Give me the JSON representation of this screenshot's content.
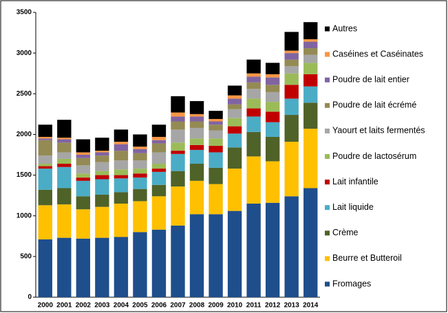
{
  "chart_data": {
    "type": "stacked_bar",
    "categories": [
      "2000",
      "2001",
      "2002",
      "2003",
      "2004",
      "2005",
      "2006",
      "2007",
      "2008",
      "2009",
      "2010",
      "2011",
      "2012",
      "2013",
      "2014"
    ],
    "ylim": [
      0,
      3500
    ],
    "yticks": [
      0,
      500,
      1000,
      1500,
      2000,
      2500,
      3000,
      3500
    ],
    "grid": false,
    "legend": "right",
    "series": [
      {
        "name": "Fromages",
        "color": "#1f4e8c",
        "values": [
          710,
          730,
          720,
          730,
          740,
          800,
          830,
          880,
          1020,
          1020,
          1060,
          1150,
          1160,
          1240,
          1340
        ]
      },
      {
        "name": "Beurre et Butteroil",
        "color": "#ffc000",
        "values": [
          420,
          410,
          360,
          380,
          410,
          380,
          410,
          480,
          410,
          370,
          520,
          580,
          510,
          670,
          730
        ]
      },
      {
        "name": "Crème",
        "color": "#4f6228",
        "values": [
          190,
          200,
          160,
          150,
          140,
          150,
          140,
          190,
          210,
          200,
          260,
          300,
          300,
          330,
          320
        ]
      },
      {
        "name": "Lait liquide",
        "color": "#4bacc6",
        "values": [
          260,
          260,
          190,
          190,
          170,
          140,
          160,
          210,
          170,
          190,
          170,
          190,
          180,
          200,
          200
        ]
      },
      {
        "name": "Lait infantile",
        "color": "#c00000",
        "values": [
          30,
          40,
          40,
          50,
          40,
          50,
          40,
          40,
          60,
          80,
          90,
          100,
          130,
          170,
          150
        ]
      },
      {
        "name": "Poudre de lactosérum",
        "color": "#9bbb59",
        "values": [
          30,
          60,
          50,
          50,
          70,
          60,
          60,
          100,
          80,
          90,
          100,
          120,
          120,
          140,
          140
        ]
      },
      {
        "name": "Yaourt et laits fermentés",
        "color": "#a6a6a6",
        "values": [
          100,
          80,
          100,
          110,
          110,
          100,
          140,
          160,
          130,
          100,
          110,
          120,
          120,
          90,
          100
        ]
      },
      {
        "name": "Poudre de lait écrémé",
        "color": "#948a54",
        "values": [
          190,
          120,
          90,
          80,
          120,
          90,
          110,
          100,
          80,
          70,
          60,
          80,
          90,
          80,
          80
        ]
      },
      {
        "name": "Poudre de lait entier",
        "color": "#8064a2",
        "values": [
          20,
          40,
          40,
          40,
          80,
          50,
          40,
          60,
          60,
          40,
          70,
          70,
          90,
          80,
          80
        ]
      },
      {
        "name": "Caséines et Caséinates",
        "color": "#f79646",
        "values": [
          20,
          20,
          30,
          20,
          30,
          30,
          40,
          50,
          30,
          30,
          40,
          40,
          40,
          30,
          30
        ]
      },
      {
        "name": "Autres",
        "color": "#000000",
        "values": [
          150,
          220,
          160,
          160,
          150,
          150,
          150,
          200,
          160,
          100,
          120,
          170,
          140,
          230,
          210
        ]
      }
    ]
  }
}
